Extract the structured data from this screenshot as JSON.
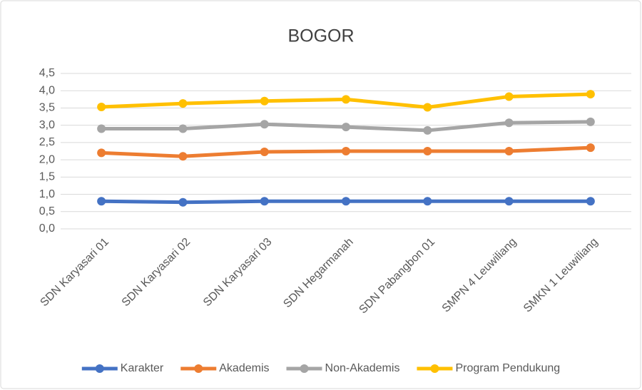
{
  "chart_data": {
    "type": "line",
    "title": "BOGOR",
    "categories": [
      "SDN Karyasari 01",
      "SDN Karyasari 02",
      "SDN Karyasari 03",
      "SDN Hegarmanah",
      "SDN Pabangbon 01",
      "SMPN 4 Leuwiliang",
      "SMKN 1 Leuwiliang"
    ],
    "series": [
      {
        "name": "Karakter",
        "color": "#4472c4",
        "values": [
          0.8,
          0.77,
          0.8,
          0.8,
          0.8,
          0.8,
          0.8
        ]
      },
      {
        "name": "Akademis",
        "color": "#ed7d31",
        "values": [
          2.2,
          2.1,
          2.23,
          2.25,
          2.25,
          2.25,
          2.35
        ]
      },
      {
        "name": "Non-Akademis",
        "color": "#a5a5a5",
        "values": [
          2.9,
          2.9,
          3.03,
          2.95,
          2.85,
          3.07,
          3.1
        ]
      },
      {
        "name": "Program Pendukung",
        "color": "#ffc000",
        "values": [
          3.53,
          3.63,
          3.7,
          3.75,
          3.52,
          3.83,
          3.9
        ]
      }
    ],
    "ylim": [
      0,
      4.5
    ],
    "yticks": [
      {
        "value": 0,
        "label": "0,0"
      },
      {
        "value": 0.5,
        "label": "0,5"
      },
      {
        "value": 1,
        "label": "1,0"
      },
      {
        "value": 1.5,
        "label": "1,5"
      },
      {
        "value": 2,
        "label": "2,0"
      },
      {
        "value": 2.5,
        "label": "2,5"
      },
      {
        "value": 3,
        "label": "3,0"
      },
      {
        "value": 3.5,
        "label": "3,5"
      },
      {
        "value": 4,
        "label": "4,0"
      },
      {
        "value": 4.5,
        "label": "4,5"
      }
    ],
    "grid": true,
    "legend": "bottom"
  }
}
